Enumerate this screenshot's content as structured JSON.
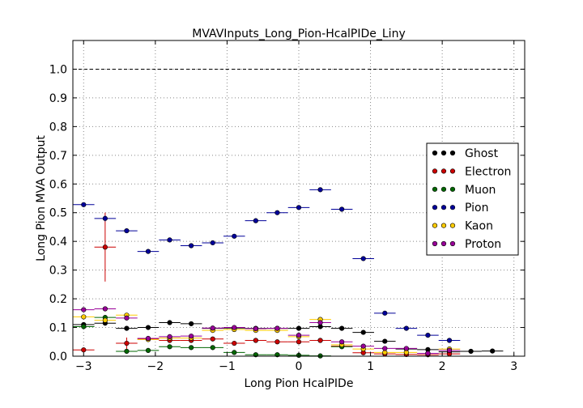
{
  "chart_data": {
    "type": "scatter",
    "title": "MVAVInputs_Long_Pion-HcalPIDe_Liny",
    "xlabel": "Long Pion HcalPIDe",
    "ylabel": "Long Pion MVA Output",
    "xlim": [
      -3.15,
      3.15
    ],
    "ylim": [
      0.0,
      1.1
    ],
    "xticks": [
      -3,
      -2,
      -1,
      0,
      1,
      2,
      3
    ],
    "yticks": [
      0.0,
      0.1,
      0.2,
      0.3,
      0.4,
      0.5,
      0.6,
      0.7,
      0.8,
      0.9,
      1.0
    ],
    "xtick_labels": [
      "−3",
      "−2",
      "−1",
      "0",
      "1",
      "2",
      "3"
    ],
    "ytick_labels": [
      "0.0",
      "0.1",
      "0.2",
      "0.3",
      "0.4",
      "0.5",
      "0.6",
      "0.7",
      "0.8",
      "0.9",
      "1.0"
    ],
    "grid": true,
    "reference_line_y": 1.0,
    "legend_position": "right",
    "bin_halfwidth": 0.15,
    "series": [
      {
        "name": "Ghost",
        "color": "#000000",
        "points": [
          {
            "x": -3.0,
            "y": 0.11,
            "err": 0.008
          },
          {
            "x": -2.7,
            "y": 0.115,
            "err": 0.008
          },
          {
            "x": -2.4,
            "y": 0.097,
            "err": 0.005
          },
          {
            "x": -2.1,
            "y": 0.1,
            "err": 0.005
          },
          {
            "x": -1.8,
            "y": 0.117,
            "err": 0.005
          },
          {
            "x": -1.5,
            "y": 0.113,
            "err": 0.005
          },
          {
            "x": -1.2,
            "y": 0.097,
            "err": 0.005
          },
          {
            "x": -0.9,
            "y": 0.098,
            "err": 0.005
          },
          {
            "x": -0.6,
            "y": 0.097,
            "err": 0.005
          },
          {
            "x": -0.3,
            "y": 0.097,
            "err": 0.005
          },
          {
            "x": 0.0,
            "y": 0.097,
            "err": 0.005
          },
          {
            "x": 0.3,
            "y": 0.103,
            "err": 0.005
          },
          {
            "x": 0.6,
            "y": 0.097,
            "err": 0.005
          },
          {
            "x": 0.9,
            "y": 0.083,
            "err": 0.005
          },
          {
            "x": 1.2,
            "y": 0.052,
            "err": 0.005
          },
          {
            "x": 1.5,
            "y": 0.025,
            "err": 0.004
          },
          {
            "x": 1.8,
            "y": 0.023,
            "err": 0.004
          },
          {
            "x": 2.1,
            "y": 0.015,
            "err": 0.004
          },
          {
            "x": 2.4,
            "y": 0.017,
            "err": 0.004
          },
          {
            "x": 2.7,
            "y": 0.018,
            "err": 0.004
          }
        ]
      },
      {
        "name": "Electron",
        "color": "#cc0000",
        "points": [
          {
            "x": -3.0,
            "y": 0.022,
            "err": 0.008
          },
          {
            "x": -2.7,
            "y": 0.38,
            "err": 0.12
          },
          {
            "x": -2.4,
            "y": 0.045,
            "err": 0.02
          },
          {
            "x": -2.1,
            "y": 0.06,
            "err": 0.008
          },
          {
            "x": -1.8,
            "y": 0.055,
            "err": 0.006
          },
          {
            "x": -1.5,
            "y": 0.055,
            "err": 0.006
          },
          {
            "x": -1.2,
            "y": 0.06,
            "err": 0.005
          },
          {
            "x": -0.9,
            "y": 0.045,
            "err": 0.005
          },
          {
            "x": -0.6,
            "y": 0.055,
            "err": 0.005
          },
          {
            "x": -0.3,
            "y": 0.05,
            "err": 0.005
          },
          {
            "x": 0.0,
            "y": 0.05,
            "err": 0.005
          },
          {
            "x": 0.3,
            "y": 0.055,
            "err": 0.005
          },
          {
            "x": 0.6,
            "y": 0.035,
            "err": 0.005
          },
          {
            "x": 0.9,
            "y": 0.012,
            "err": 0.004
          },
          {
            "x": 1.2,
            "y": 0.008,
            "err": 0.004
          },
          {
            "x": 1.5,
            "y": 0.006,
            "err": 0.003
          },
          {
            "x": 1.8,
            "y": 0.005,
            "err": 0.003
          },
          {
            "x": 2.1,
            "y": 0.008,
            "err": 0.003
          }
        ]
      },
      {
        "name": "Muon",
        "color": "#006600",
        "points": [
          {
            "x": -3.0,
            "y": 0.103,
            "err": 0.008
          },
          {
            "x": -2.7,
            "y": 0.135,
            "err": 0.008
          },
          {
            "x": -2.4,
            "y": 0.017,
            "err": 0.004
          },
          {
            "x": -2.1,
            "y": 0.02,
            "err": 0.004
          },
          {
            "x": -1.8,
            "y": 0.033,
            "err": 0.004
          },
          {
            "x": -1.5,
            "y": 0.03,
            "err": 0.004
          },
          {
            "x": -1.2,
            "y": 0.03,
            "err": 0.004
          },
          {
            "x": -0.9,
            "y": 0.013,
            "err": 0.004
          },
          {
            "x": -0.6,
            "y": 0.005,
            "err": 0.003
          },
          {
            "x": -0.3,
            "y": 0.005,
            "err": 0.003
          },
          {
            "x": 0.0,
            "y": 0.003,
            "err": 0.003
          },
          {
            "x": 0.3,
            "y": 0.001,
            "err": 0.002
          },
          {
            "x": 0.6,
            "y": 0.033,
            "err": 0.004
          }
        ]
      },
      {
        "name": "Pion",
        "color": "#000099",
        "points": [
          {
            "x": -3.0,
            "y": 0.528,
            "err": 0.005
          },
          {
            "x": -2.7,
            "y": 0.48,
            "err": 0.01
          },
          {
            "x": -2.4,
            "y": 0.437,
            "err": 0.005
          },
          {
            "x": -2.1,
            "y": 0.365,
            "err": 0.005
          },
          {
            "x": -1.8,
            "y": 0.405,
            "err": 0.005
          },
          {
            "x": -1.5,
            "y": 0.385,
            "err": 0.005
          },
          {
            "x": -1.2,
            "y": 0.395,
            "err": 0.005
          },
          {
            "x": -0.9,
            "y": 0.418,
            "err": 0.005
          },
          {
            "x": -0.6,
            "y": 0.472,
            "err": 0.005
          },
          {
            "x": -0.3,
            "y": 0.5,
            "err": 0.005
          },
          {
            "x": 0.0,
            "y": 0.518,
            "err": 0.005
          },
          {
            "x": 0.3,
            "y": 0.58,
            "err": 0.005
          },
          {
            "x": 0.6,
            "y": 0.512,
            "err": 0.005
          },
          {
            "x": 0.9,
            "y": 0.34,
            "err": 0.005
          },
          {
            "x": 1.2,
            "y": 0.15,
            "err": 0.005
          },
          {
            "x": 1.5,
            "y": 0.097,
            "err": 0.005
          },
          {
            "x": 1.8,
            "y": 0.073,
            "err": 0.005
          },
          {
            "x": 2.1,
            "y": 0.055,
            "err": 0.005
          }
        ]
      },
      {
        "name": "Kaon",
        "color": "#ffcc00",
        "points": [
          {
            "x": -3.0,
            "y": 0.137,
            "err": 0.008
          },
          {
            "x": -2.7,
            "y": 0.125,
            "err": 0.008
          },
          {
            "x": -2.4,
            "y": 0.143,
            "err": 0.008
          },
          {
            "x": -2.1,
            "y": 0.058,
            "err": 0.005
          },
          {
            "x": -1.8,
            "y": 0.063,
            "err": 0.005
          },
          {
            "x": -1.5,
            "y": 0.063,
            "err": 0.005
          },
          {
            "x": -1.2,
            "y": 0.09,
            "err": 0.005
          },
          {
            "x": -0.9,
            "y": 0.093,
            "err": 0.005
          },
          {
            "x": -0.6,
            "y": 0.09,
            "err": 0.005
          },
          {
            "x": -0.3,
            "y": 0.09,
            "err": 0.005
          },
          {
            "x": 0.0,
            "y": 0.068,
            "err": 0.005
          },
          {
            "x": 0.3,
            "y": 0.128,
            "err": 0.005
          },
          {
            "x": 0.6,
            "y": 0.04,
            "err": 0.005
          },
          {
            "x": 0.9,
            "y": 0.025,
            "err": 0.005
          },
          {
            "x": 1.2,
            "y": 0.013,
            "err": 0.004
          },
          {
            "x": 1.5,
            "y": 0.013,
            "err": 0.004
          },
          {
            "x": 1.8,
            "y": 0.01,
            "err": 0.004
          },
          {
            "x": 2.1,
            "y": 0.025,
            "err": 0.004
          }
        ]
      },
      {
        "name": "Proton",
        "color": "#990099",
        "points": [
          {
            "x": -3.0,
            "y": 0.162,
            "err": 0.008
          },
          {
            "x": -2.7,
            "y": 0.165,
            "err": 0.008
          },
          {
            "x": -2.4,
            "y": 0.133,
            "err": 0.006
          },
          {
            "x": -2.1,
            "y": 0.062,
            "err": 0.005
          },
          {
            "x": -1.8,
            "y": 0.068,
            "err": 0.005
          },
          {
            "x": -1.5,
            "y": 0.07,
            "err": 0.005
          },
          {
            "x": -1.2,
            "y": 0.098,
            "err": 0.005
          },
          {
            "x": -0.9,
            "y": 0.1,
            "err": 0.005
          },
          {
            "x": -0.6,
            "y": 0.096,
            "err": 0.005
          },
          {
            "x": -0.3,
            "y": 0.097,
            "err": 0.005
          },
          {
            "x": 0.0,
            "y": 0.073,
            "err": 0.005
          },
          {
            "x": 0.3,
            "y": 0.117,
            "err": 0.005
          },
          {
            "x": 0.6,
            "y": 0.05,
            "err": 0.005
          },
          {
            "x": 0.9,
            "y": 0.035,
            "err": 0.005
          },
          {
            "x": 1.2,
            "y": 0.027,
            "err": 0.004
          },
          {
            "x": 1.5,
            "y": 0.027,
            "err": 0.004
          },
          {
            "x": 1.8,
            "y": 0.01,
            "err": 0.004
          },
          {
            "x": 2.1,
            "y": 0.02,
            "err": 0.004
          }
        ]
      }
    ]
  }
}
